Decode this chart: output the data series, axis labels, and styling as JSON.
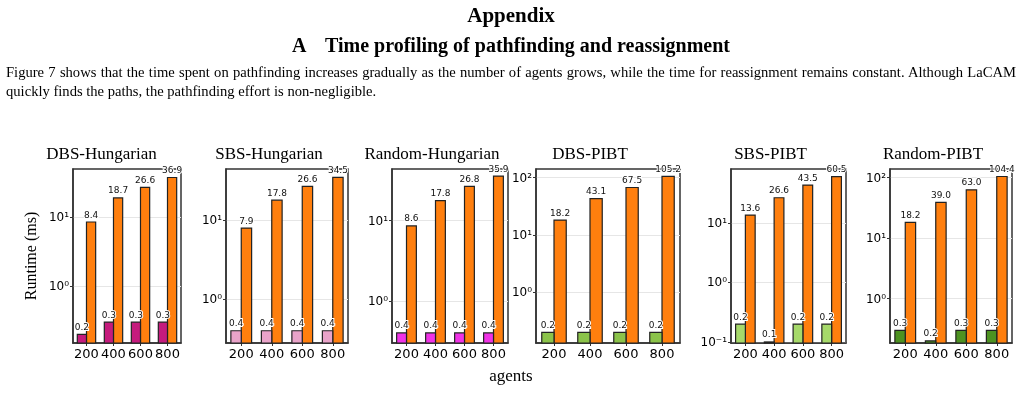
{
  "chart_data": [
    {
      "type": "other",
      "title": "Appendix",
      "subtitle": "A    Time profiling of pathfinding and reassignment",
      "annotations": [
        "Figure 7 shows that the time spent on pathfinding increases gradually as the number of agents grows, while the time for reassignment remains constant. Although LaCAM quickly finds the paths, the pathfinding effort is non-negligible."
      ]
    },
    {
      "type": "bar",
      "title": "DBS-Hungarian",
      "ylabel": "Runtime (ms)",
      "categories": [
        "200",
        "400",
        "600",
        "800"
      ],
      "log": "y",
      "grid": "y",
      "ylim": [
        0.15,
        49
      ],
      "yticks": [
        {
          "value": 1,
          "label": "10⁰"
        },
        {
          "value": 10,
          "label": "10¹"
        }
      ],
      "series": [
        {
          "color": "#c51b7d",
          "values": [
            0.2,
            0.3,
            0.3,
            0.3
          ],
          "value_labels": [
            "0.2",
            "0.3",
            "0.3",
            "0.3"
          ]
        },
        {
          "color": "#ff7f0e",
          "values": [
            8.4,
            18.7,
            26.6,
            36.9
          ],
          "value_labels": [
            "8.4",
            "18.7",
            "26.6",
            "36.9"
          ]
        }
      ]
    },
    {
      "type": "bar",
      "title": "SBS-Hungarian",
      "categories": [
        "200",
        "400",
        "600",
        "800"
      ],
      "log": "y",
      "grid": "y",
      "ylim": [
        0.28,
        44
      ],
      "yticks": [
        {
          "value": 1,
          "label": "10⁰"
        },
        {
          "value": 10,
          "label": "10¹"
        }
      ],
      "series": [
        {
          "color": "#e9a3c9",
          "values": [
            0.4,
            0.4,
            0.4,
            0.4
          ],
          "value_labels": [
            "0.4",
            "0.4",
            "0.4",
            "0.4"
          ]
        },
        {
          "color": "#ff7f0e",
          "values": [
            7.9,
            17.8,
            26.6,
            34.5
          ],
          "value_labels": [
            "7.9",
            "17.8",
            "26.6",
            "34.5"
          ]
        }
      ]
    },
    {
      "type": "bar",
      "title": "Random-Hungarian",
      "xlabel": "agents",
      "categories": [
        "200",
        "400",
        "600",
        "800"
      ],
      "log": "y",
      "grid": "y",
      "ylim": [
        0.3,
        44
      ],
      "yticks": [
        {
          "value": 1,
          "label": "10⁰"
        },
        {
          "value": 10,
          "label": "10¹"
        }
      ],
      "series": [
        {
          "color": "#f032e6",
          "values": [
            0.4,
            0.4,
            0.4,
            0.4
          ],
          "value_labels": [
            "0.4",
            "0.4",
            "0.4",
            "0.4"
          ]
        },
        {
          "color": "#ff7f0e",
          "values": [
            8.6,
            17.8,
            26.8,
            35.9
          ],
          "value_labels": [
            "8.6",
            "17.8",
            "26.8",
            "35.9"
          ]
        }
      ]
    },
    {
      "type": "bar",
      "title": "DBS-PIBT",
      "categories": [
        "200",
        "400",
        "600",
        "800"
      ],
      "log": "y",
      "grid": "y",
      "ylim": [
        0.13,
        142
      ],
      "yticks": [
        {
          "value": 1,
          "label": "10⁰"
        },
        {
          "value": 10,
          "label": "10¹"
        },
        {
          "value": 100,
          "label": "10²"
        }
      ],
      "series": [
        {
          "color": "#8bc34a",
          "values": [
            0.2,
            0.2,
            0.2,
            0.2
          ],
          "value_labels": [
            "0.2",
            "0.2",
            "0.2",
            "0.2"
          ]
        },
        {
          "color": "#ff7f0e",
          "values": [
            18.2,
            43.1,
            67.5,
            105.2
          ],
          "value_labels": [
            "18.2",
            "43.1",
            "67.5",
            "105.2"
          ]
        }
      ]
    },
    {
      "type": "bar",
      "title": "SBS-PIBT",
      "categories": [
        "200",
        "400",
        "600",
        "800"
      ],
      "log": "y",
      "grid": "y",
      "ylim": [
        0.096,
        81
      ],
      "yticks": [
        {
          "value": 0.1,
          "label": "10⁻¹"
        },
        {
          "value": 1,
          "label": "10⁰"
        },
        {
          "value": 10,
          "label": "10¹"
        }
      ],
      "series": [
        {
          "color": "#a6d96a",
          "values": [
            0.2,
            0.1,
            0.2,
            0.2
          ],
          "value_labels": [
            "0.2",
            "0.1",
            "0.2",
            "0.2"
          ]
        },
        {
          "color": "#ff7f0e",
          "values": [
            13.6,
            26.6,
            43.5,
            60.5
          ],
          "value_labels": [
            "13.6",
            "26.6",
            "43.5",
            "60.5"
          ]
        }
      ]
    },
    {
      "type": "bar",
      "title": "Random-PIBT",
      "categories": [
        "200",
        "400",
        "600",
        "800"
      ],
      "log": "y",
      "grid": "y",
      "ylim": [
        0.185,
        139
      ],
      "yticks": [
        {
          "value": 1,
          "label": "10⁰"
        },
        {
          "value": 10,
          "label": "10¹"
        },
        {
          "value": 100,
          "label": "10²"
        }
      ],
      "series": [
        {
          "color": "#4d9221",
          "values": [
            0.3,
            0.2,
            0.3,
            0.3
          ],
          "value_labels": [
            "0.3",
            "0.2",
            "0.3",
            "0.3"
          ]
        },
        {
          "color": "#ff7f0e",
          "values": [
            18.2,
            39.0,
            63.0,
            104.4
          ],
          "value_labels": [
            "18.2",
            "39.0",
            "63.0",
            "104.4"
          ]
        }
      ]
    }
  ]
}
